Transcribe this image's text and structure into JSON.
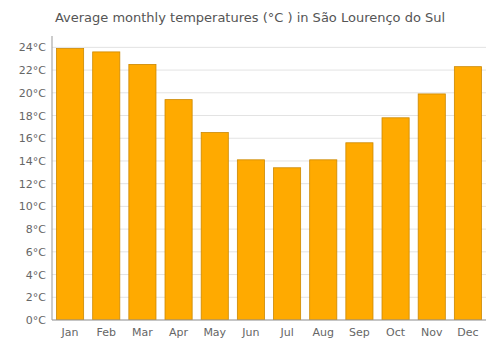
{
  "chart_data": {
    "type": "bar",
    "title": "Average monthly temperatures (°C ) in São Lourenço do Sul",
    "categories": [
      "Jan",
      "Feb",
      "Mar",
      "Apr",
      "May",
      "Jun",
      "Jul",
      "Aug",
      "Sep",
      "Oct",
      "Nov",
      "Dec"
    ],
    "values": [
      23.9,
      23.6,
      22.5,
      19.4,
      16.5,
      14.1,
      13.4,
      14.1,
      15.6,
      17.8,
      19.9,
      22.3
    ],
    "color": "#FFAA00",
    "ylim": [
      0,
      25
    ],
    "yticks": [
      {
        "value": 0,
        "label": "0°C"
      },
      {
        "value": 2,
        "label": "2°C"
      },
      {
        "value": 4,
        "label": "4°C"
      },
      {
        "value": 6,
        "label": "6°C"
      },
      {
        "value": 8,
        "label": "8°C"
      },
      {
        "value": 10,
        "label": "10°C"
      },
      {
        "value": 12,
        "label": "12°C"
      },
      {
        "value": 14,
        "label": "14°C"
      },
      {
        "value": 16,
        "label": "16°C"
      },
      {
        "value": 18,
        "label": "18°C"
      },
      {
        "value": 20,
        "label": "20°C"
      },
      {
        "value": 22,
        "label": "22°C"
      },
      {
        "value": 24,
        "label": "24°C"
      }
    ],
    "grid": true
  }
}
